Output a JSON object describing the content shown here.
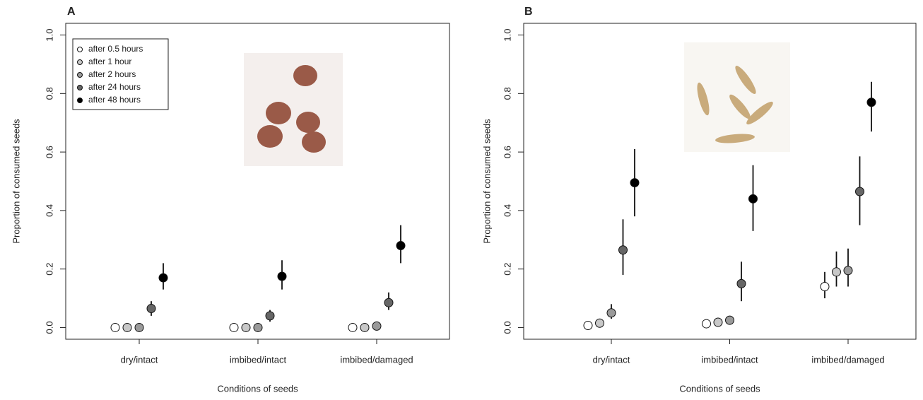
{
  "chart_data": [
    {
      "type": "dot-errorbar",
      "title": "A",
      "xlabel": "Conditions of seeds",
      "ylabel": "Proportion of consumed seeds",
      "categories": [
        "dry/intact",
        "imbibed/intact",
        "imbibed/damaged"
      ],
      "ylim": [
        -0.04,
        1.04
      ],
      "yticks": [
        {
          "value": 0,
          "label": "0.0"
        },
        0.2,
        0.4,
        0.6,
        0.8,
        {
          "value": 1,
          "label": "1.0"
        }
      ],
      "legend": "top-left",
      "series": [
        {
          "name": "after 0.5 hours",
          "color": "#ffffff",
          "values": [
            0,
            0,
            0
          ],
          "ci": [
            null,
            null,
            null
          ]
        },
        {
          "name": "after 1 hour",
          "color": "#c8c8c8",
          "values": [
            0,
            0,
            0
          ],
          "ci": [
            null,
            null,
            null
          ]
        },
        {
          "name": "after 2 hours",
          "color": "#9a9a9a",
          "values": [
            0,
            0,
            0.005
          ],
          "ci": [
            null,
            null,
            null
          ]
        },
        {
          "name": "after 24 hours",
          "color": "#666666",
          "values": [
            0.065,
            0.04,
            0.085
          ],
          "ci": [
            [
              0.04,
              0.09
            ],
            [
              0.02,
              0.06
            ],
            [
              0.06,
              0.12
            ]
          ]
        },
        {
          "name": "after 48 hours",
          "color": "#000000",
          "values": [
            0.17,
            0.175,
            0.28
          ],
          "ci": [
            [
              0.13,
              0.22
            ],
            [
              0.13,
              0.23
            ],
            [
              0.22,
              0.35
            ]
          ]
        }
      ]
    },
    {
      "type": "dot-errorbar",
      "title": "B",
      "xlabel": "Conditions of seeds",
      "ylabel": "Proportion of consumed seeds",
      "categories": [
        "dry/intact",
        "imbibed/intact",
        "imbibed/damaged"
      ],
      "ylim": [
        -0.04,
        1.04
      ],
      "yticks": [
        {
          "value": 0,
          "label": "0.0"
        },
        0.2,
        0.4,
        0.6,
        0.8,
        {
          "value": 1,
          "label": "1.0"
        }
      ],
      "series": [
        {
          "color": "#ffffff",
          "values": [
            0.007,
            0.013,
            0.14
          ],
          "ci": [
            null,
            null,
            [
              0.1,
              0.19
            ]
          ]
        },
        {
          "color": "#c8c8c8",
          "values": [
            0.015,
            0.018,
            0.19
          ],
          "ci": [
            null,
            null,
            [
              0.14,
              0.26
            ]
          ]
        },
        {
          "color": "#9a9a9a",
          "values": [
            0.05,
            0.025,
            0.195
          ],
          "ci": [
            [
              0.03,
              0.08
            ],
            null,
            [
              0.14,
              0.27
            ]
          ]
        },
        {
          "color": "#666666",
          "values": [
            0.265,
            0.15,
            0.465
          ],
          "ci": [
            [
              0.18,
              0.37
            ],
            [
              0.09,
              0.225
            ],
            [
              0.35,
              0.585
            ]
          ]
        },
        {
          "color": "#000000",
          "values": [
            0.495,
            0.44,
            0.77
          ],
          "ci": [
            [
              0.38,
              0.61
            ],
            [
              0.33,
              0.555
            ],
            [
              0.67,
              0.84
            ]
          ]
        }
      ]
    }
  ]
}
